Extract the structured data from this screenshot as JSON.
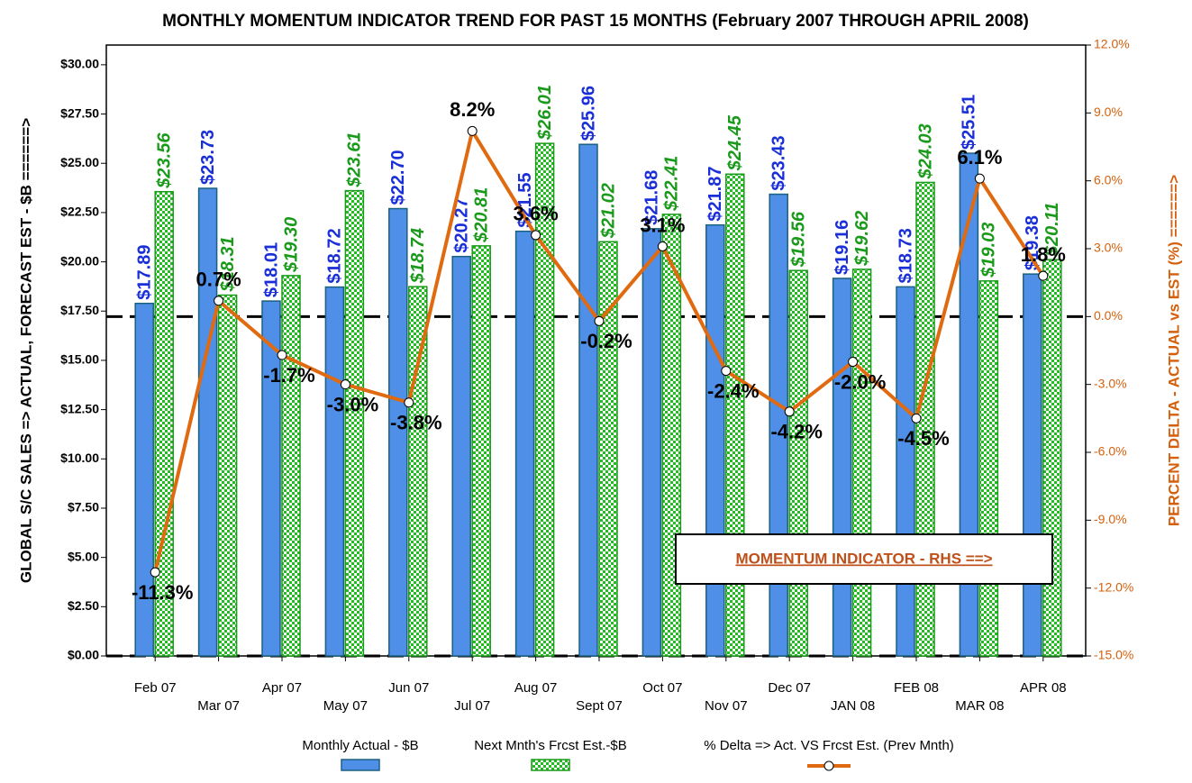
{
  "chart_data": {
    "type": "bar",
    "title": "MONTHLY MOMENTUM INDICATOR TREND FOR PAST 15 MONTHS (February 2007 THROUGH APRIL 2008)",
    "y_label": "GLOBAL S/C SALES => ACTUAL, FORECAST  EST - $B ======>",
    "y2_label": "PERCENT DELTA - ACTUAL vs EST (%) ======>",
    "annotation": "MOMENTUM INDICATOR - RHS ==>",
    "categories": [
      "Feb 07",
      "Mar 07",
      "Apr 07",
      "May 07",
      "Jun 07",
      "Jul 07",
      "Aug 07",
      "Sept 07",
      "Oct 07",
      "Nov 07",
      "Dec 07",
      "JAN 08",
      "FEB 08",
      "MAR 08",
      "APR 08"
    ],
    "series": [
      {
        "name": "Monthly Actual - $B",
        "type": "bar",
        "color": "#4f8fe8",
        "text_color": "#1a2fd8",
        "values": [
          17.89,
          23.73,
          18.01,
          18.72,
          22.7,
          20.27,
          21.55,
          25.96,
          21.68,
          21.87,
          23.43,
          19.16,
          18.73,
          25.51,
          19.38
        ],
        "value_labels": [
          "$17.89",
          "$23.73",
          "$18.01",
          "$18.72",
          "$22.70",
          "$20.27",
          "$21.55",
          "$25.96",
          "$21.68",
          "$21.87",
          "$23.43",
          "$19.16",
          "$18.73",
          "$25.51",
          "$19.38"
        ]
      },
      {
        "name": "Next Mnth's Frcst Est.-$B",
        "type": "bar",
        "color": "#22bb22",
        "text_color": "#1a9a1a",
        "values": [
          23.56,
          18.31,
          19.3,
          23.61,
          18.74,
          20.81,
          26.01,
          21.02,
          22.41,
          24.45,
          19.56,
          19.62,
          24.03,
          19.03,
          20.11
        ],
        "value_labels": [
          "$23.56",
          "$18.31",
          "$19.30",
          "$23.61",
          "$18.74",
          "$20.81",
          "$26.01",
          "$21.02",
          "$22.41",
          "$24.45",
          "$19.56",
          "$19.62",
          "$24.03",
          "$19.03",
          "$20.11"
        ]
      },
      {
        "name": "% Delta => Act. VS Frcst Est. (Prev Mnth)",
        "type": "line",
        "axis": "y2",
        "color": "#e06a10",
        "text_color": "#000000",
        "values": [
          -11.3,
          0.7,
          -1.7,
          -3.0,
          -3.8,
          8.2,
          3.6,
          -0.2,
          3.1,
          -2.4,
          -4.2,
          -2.0,
          -4.5,
          6.1,
          1.8
        ],
        "value_labels": [
          "-11.3%",
          "0.7%",
          "-1.7%",
          "-3.0%",
          "-3.8%",
          "8.2%",
          "3.6%",
          "-0.2%",
          "3.1%",
          "-2.4%",
          "-4.2%",
          "-2.0%",
          "-4.5%",
          "6.1%",
          "1.8%"
        ]
      }
    ],
    "ylim": [
      0,
      31
    ],
    "yticks": [
      {
        "value": 0,
        "label": "$0.00"
      },
      {
        "value": 2.5,
        "label": "$2.50"
      },
      {
        "value": 5,
        "label": "$5.00"
      },
      {
        "value": 7.5,
        "label": "$7.50"
      },
      {
        "value": 10,
        "label": "$10.00"
      },
      {
        "value": 12.5,
        "label": "$12.50"
      },
      {
        "value": 15,
        "label": "$15.00"
      },
      {
        "value": 17.5,
        "label": "$17.50"
      },
      {
        "value": 20,
        "label": "$20.00"
      },
      {
        "value": 22.5,
        "label": "$22.50"
      },
      {
        "value": 25,
        "label": "$25.00"
      },
      {
        "value": 27.5,
        "label": "$27.50"
      },
      {
        "value": 30,
        "label": "$30.00"
      }
    ],
    "y2lim": [
      -15,
      12
    ],
    "y2ticks": [
      {
        "value": -15,
        "label": "-15.0%"
      },
      {
        "value": -12,
        "label": "-12.0%"
      },
      {
        "value": -9,
        "label": "-9.0%"
      },
      {
        "value": -6,
        "label": "-6.0%"
      },
      {
        "value": -3,
        "label": "-3.0%"
      },
      {
        "value": 0,
        "label": "0.0%"
      },
      {
        "value": 3,
        "label": "3.0%"
      },
      {
        "value": 6,
        "label": "6.0%"
      },
      {
        "value": 9,
        "label": "9.0%"
      },
      {
        "value": 12,
        "label": "12.0%"
      }
    ],
    "y2_color": "#d4600e"
  }
}
